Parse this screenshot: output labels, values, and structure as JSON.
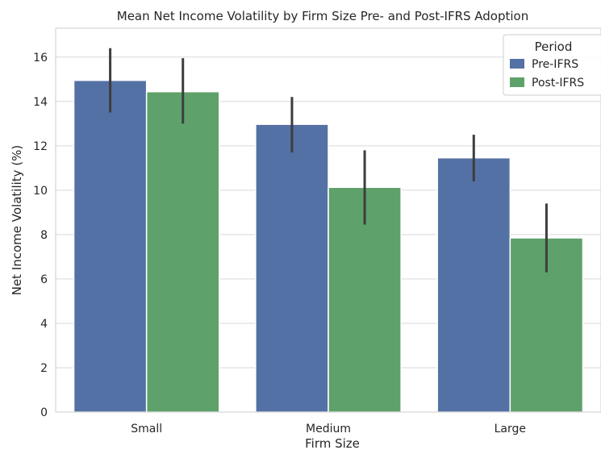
{
  "chart_data": {
    "type": "bar",
    "title": "Mean Net Income Volatility by Firm Size Pre- and Post-IFRS Adoption",
    "xlabel": "Firm Size",
    "ylabel": "Net Income Volatility (%)",
    "categories": [
      "Small",
      "Medium",
      "Large"
    ],
    "ylim": [
      0,
      17.3
    ],
    "yticks": [
      0,
      2,
      4,
      6,
      8,
      10,
      12,
      14,
      16
    ],
    "grid": true,
    "legend": {
      "title": "Period",
      "placement": "top-right"
    },
    "series": [
      {
        "name": "Pre-IFRS",
        "color": "#5471a5",
        "values": [
          14.95,
          12.97,
          11.46
        ],
        "err_low": [
          13.5,
          11.7,
          10.4
        ],
        "err_high": [
          16.4,
          14.2,
          12.5
        ]
      },
      {
        "name": "Post-IFRS",
        "color": "#5ea16b",
        "values": [
          14.44,
          10.13,
          7.85
        ],
        "err_low": [
          13.0,
          8.45,
          6.3
        ],
        "err_high": [
          15.95,
          11.8,
          9.4
        ]
      }
    ]
  }
}
